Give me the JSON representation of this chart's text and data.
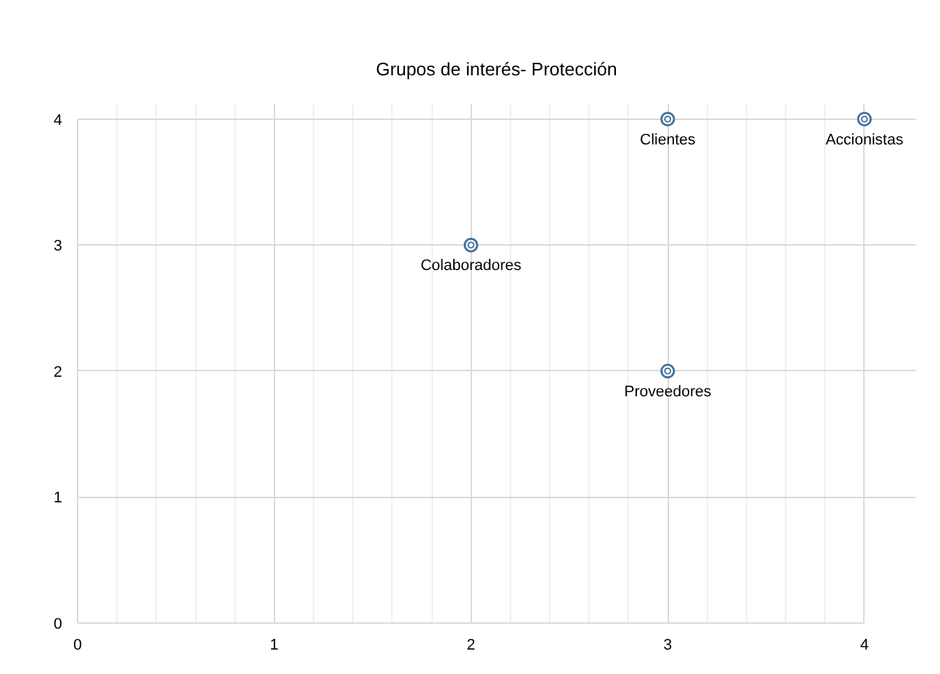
{
  "chart_data": {
    "type": "scatter",
    "title": "Grupos de interés- Protección",
    "x": [
      2,
      3,
      4,
      3
    ],
    "series": [
      {
        "color": "#41719c",
        "values": [
          3,
          4,
          4,
          2
        ]
      }
    ],
    "marker": "circle",
    "grid": true,
    "xlim": [
      0,
      4
    ],
    "xticks": [
      0,
      1,
      2,
      3,
      4
    ],
    "ylim": [
      0,
      4
    ],
    "yticks": [
      0,
      1,
      2,
      3,
      4
    ],
    "annotations": [
      {
        "text": "Colaboradores",
        "x": 2,
        "y": 3
      },
      {
        "text": "Clientes",
        "x": 3,
        "y": 4
      },
      {
        "text": "Accionistas",
        "x": 4,
        "y": 4
      },
      {
        "text": "Proveedores",
        "x": 3,
        "y": 2
      }
    ]
  }
}
